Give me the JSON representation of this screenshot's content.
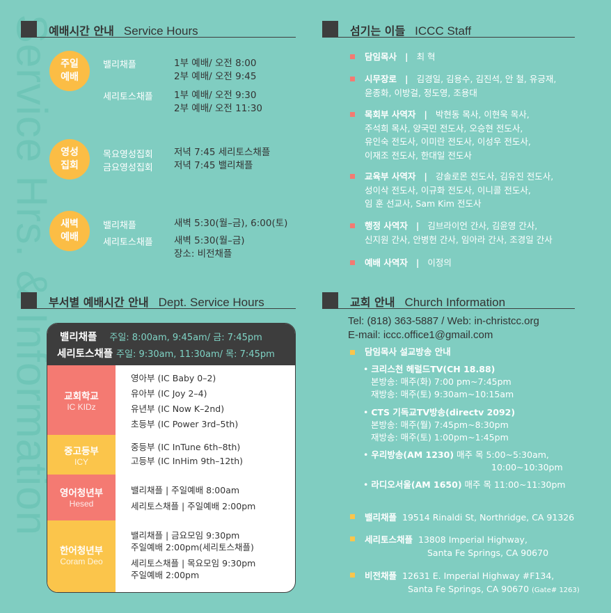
{
  "watermark": "Service Hrs. & Information",
  "colors": {
    "background": "#80cdc1",
    "orange": "#fbbd45",
    "coral": "#f47a72",
    "dark": "#3d3d3d"
  },
  "service": {
    "title_ko": "예배시간 안내",
    "title_en": "Service Hours",
    "groups": [
      {
        "badge": [
          "주일",
          "예배"
        ],
        "rows": [
          {
            "label": "밸리채플",
            "times": [
              "1부 예배/ 오전 8:00",
              "2부 예배/ 오전 9:45"
            ]
          },
          {
            "label": "세리토스채플",
            "times": [
              "1부 예배/ 오전 9:30",
              "2부 예배/ 오전 11:30"
            ]
          }
        ]
      },
      {
        "badge": [
          "영성",
          "집회"
        ],
        "rows": [
          {
            "label": "목요영성집회",
            "times": [
              "저녁 7:45 세리토스채플"
            ]
          },
          {
            "label": "금요영성집회",
            "times": [
              "저녁 7:45 밸리채플"
            ]
          }
        ]
      },
      {
        "badge": [
          "새벽",
          "예배"
        ],
        "rows": [
          {
            "label": "밸리채플",
            "times": [
              "새벽 5:30(월–금), 6:00(토)"
            ]
          },
          {
            "label": "세리토스채플",
            "times": [
              "새벽 5:30(월–금)",
              "장소: 비전채플"
            ]
          }
        ]
      }
    ]
  },
  "staff": {
    "title_ko": "섬기는 이들",
    "title_en": "ICCC Staff",
    "items": [
      {
        "role": "담임목사",
        "sep": "|",
        "names": [
          "최 혁"
        ]
      },
      {
        "role": "시무장로",
        "sep": "|",
        "names": [
          "김경일, 김용수, 김진석, 안 철, 유긍재,",
          "윤종화, 이방걸, 정도영, 조용대"
        ]
      },
      {
        "role": "목회부 사역자",
        "sep": "|",
        "names": [
          "박현동 목사, 이현욱 목사,",
          "주석희 목사, 양국민 전도사, 오승현 전도사,",
          "유인숙 전도사, 이미란 전도사, 이성우 전도사,",
          "이재조 전도사, 한대일 전도사"
        ]
      },
      {
        "role": "교육부 사역자",
        "sep": "|",
        "names": [
          "강솔로몬 전도사, 김유진 전도사,",
          "성이삭 전도사, 이규화 전도사, 이니콜 전도사,",
          "임 훈 선교사, Sam Kim 전도사"
        ]
      },
      {
        "role": "행정 사역자",
        "sep": "|",
        "names": [
          "김브라이언 간사, 김윤영 간사,",
          "신지원 간사, 안병헌 간사, 임아라 간사, 조경일 간사"
        ]
      },
      {
        "role": "예배 사역자",
        "sep": "|",
        "names": [
          "이정의"
        ]
      }
    ]
  },
  "dept": {
    "title_ko": "부서별 예배시간 안내",
    "title_en": "Dept. Service Hours",
    "header": [
      {
        "chapel": "밸리채플",
        "times": "주일: 8:00am, 9:45am/ 금: 7:45pm"
      },
      {
        "chapel": "세리토스채플",
        "times": "주일: 9:30am, 11:30am/ 목: 7:45pm"
      }
    ],
    "rows": [
      {
        "ko": "교회학교",
        "en": "IC KIDz",
        "lines": [
          "영아부 (IC Baby 0–2)",
          "유아부 (IC Joy 2–4)",
          "유년부 (IC Now K–2nd)",
          "초등부 (IC Power 3rd–5th)"
        ]
      },
      {
        "ko": "중고등부",
        "en": "ICY",
        "lines": [
          "중등부 (IC InTune 6th–8th)",
          "고등부 (IC InHim 9th–12th)"
        ]
      },
      {
        "ko": "영어청년부",
        "en": "Hesed",
        "lines": [
          "밸리채플 | 주일예배 8:00am",
          "세리토스채플 | 주일예배 2:00pm"
        ]
      },
      {
        "ko": "한어청년부",
        "en": "Coram Deo",
        "lines": [
          "밸리채플 | 금요모임 9:30pm",
          "주일예배 2:00pm(세리토스채플)",
          "세리토스채플 | 목요모임 9:30pm",
          "주일예배 2:00pm"
        ]
      }
    ]
  },
  "church": {
    "title_ko": "교회 안내",
    "title_en": "Church Information",
    "tel": "Tel: (818) 363-5887  /  Web: in-christcc.org",
    "email": "E-mail: iccc.office1@gmail.com",
    "broadcast_title": "담임목사 설교방송 안내",
    "broadcasts": [
      {
        "name": "크리스천 헤럴드TV(CH 18.88)",
        "lines": [
          "본방송: 매주(화) 7:00 pm~7:45pm",
          "재방송: 매주(토) 9:30am~10:15am"
        ]
      },
      {
        "name": "CTS 기독교TV방송(directv 2092)",
        "lines": [
          "본방송: 매주(월) 7:45pm~8:30pm",
          "재방송: 매주(토) 1:00pm~1:45pm"
        ]
      },
      {
        "name": "우리방송(AM 1230)",
        "inline": "매주 목 5:00~5:30am,",
        "lines": [
          "10:00~10:30pm"
        ]
      },
      {
        "name": "라디오서울(AM 1650)",
        "inline": "매주 목 11:00~11:30pm",
        "lines": []
      }
    ],
    "locations": [
      {
        "name": "밸리채플",
        "addr": [
          "19514 Rinaldi St, Northridge, CA 91326"
        ]
      },
      {
        "name": "세리토스채플",
        "addr": [
          "13808 Imperial Highway,",
          "Santa Fe Springs, CA 90670"
        ]
      },
      {
        "name": "비전채플",
        "addr": [
          "12631 E. Imperial Highway #F134,",
          "Santa Fe Springs, CA 90670"
        ],
        "note": "(Gate# 1263)"
      }
    ]
  }
}
